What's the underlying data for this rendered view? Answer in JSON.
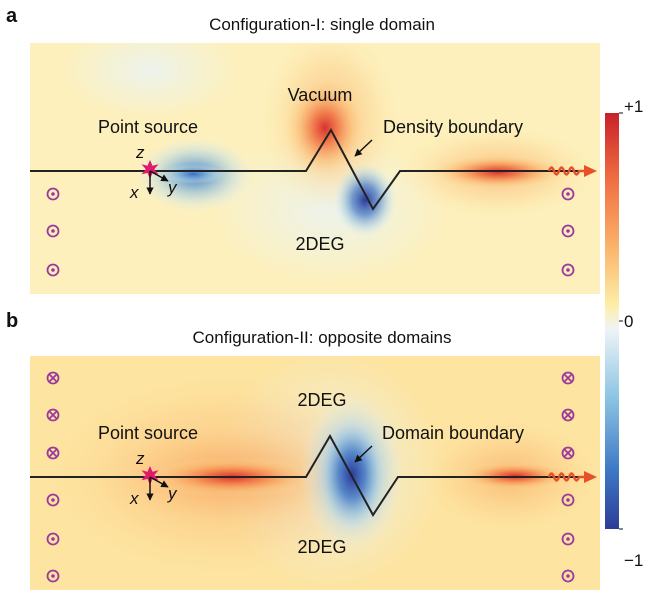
{
  "panel_a": {
    "letter": "a",
    "title": "Configuration-I: single domain",
    "label_point_source": "Point source",
    "label_vacuum": "Vacuum",
    "label_boundary": "Density boundary",
    "label_2deg": "2DEG",
    "axis_z": "z",
    "axis_x": "x",
    "axis_y": "y"
  },
  "panel_b": {
    "letter": "b",
    "title": "Configuration-II: opposite domains",
    "label_point_source": "Point source",
    "label_2deg_top": "2DEG",
    "label_boundary": "Domain boundary",
    "label_2deg_bottom": "2DEG",
    "axis_z": "z",
    "axis_x": "x",
    "axis_y": "y"
  },
  "colorbar": {
    "max_label": "+1",
    "mid_label": "0",
    "min_label": "−1",
    "colors": [
      "#c8202a",
      "#ee6a40",
      "#fbb26a",
      "#fdeea6",
      "#eef4f6",
      "#8ec6e4",
      "#3d78c4",
      "#2c3c98"
    ]
  },
  "colors": {
    "source": "#e0196c",
    "wave": "#e8502a",
    "field_symbol": "#9b3a9b",
    "boundary_line": "#222222"
  }
}
